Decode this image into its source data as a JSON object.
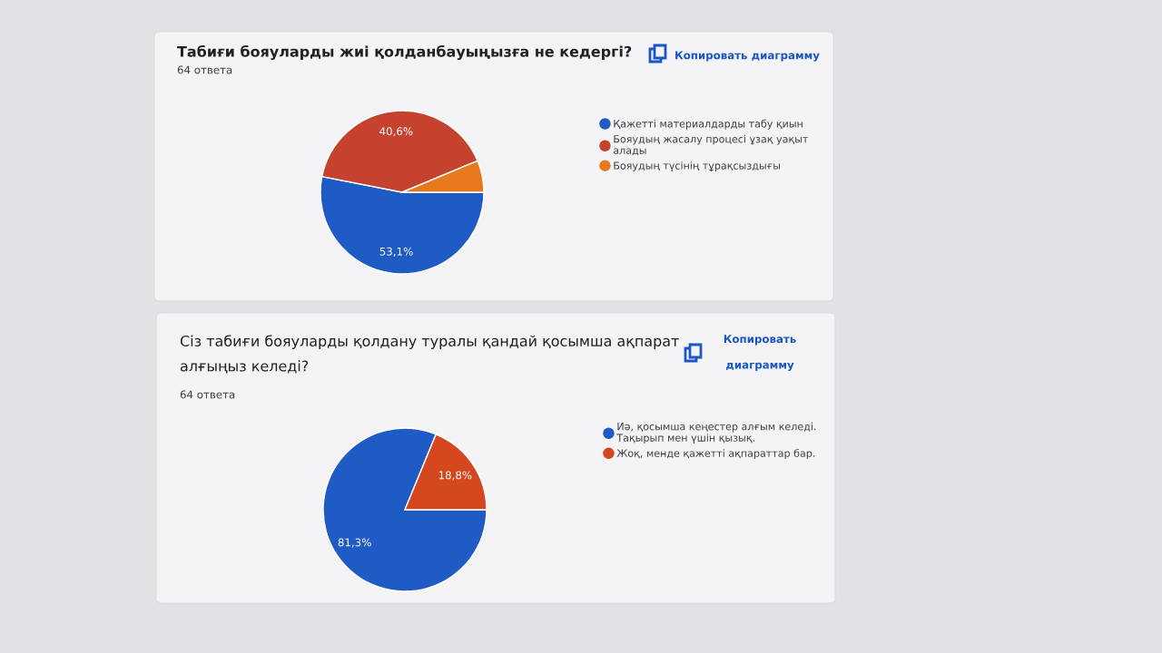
{
  "chart_data": [
    {
      "type": "pie",
      "title": "Табиғи бояуларды жиі қолданбауыңызға не кедергі?",
      "subtitle": "64 ответа",
      "annotations": [
        "Копировать диаграмму"
      ],
      "categories": [
        "Қажетті материалдарды табу қиын",
        "Бояудың жасалу процесі ұзақ уақыт алады",
        "Бояудың түсінің тұрақсыздығы"
      ],
      "values": [
        53.1,
        40.6,
        6.3
      ],
      "colors": [
        "#1f5bc4",
        "#c5432e",
        "#e8781e"
      ],
      "value_labels": [
        "53,1%",
        "40,6%",
        null
      ],
      "legend": "right"
    },
    {
      "type": "pie",
      "title": "Сіз табиғи бояуларды қолдану туралы қандай қосымша ақпарат алғыңыз келеді?",
      "subtitle": "64 ответа",
      "annotations": [
        "Копировать диаграмму"
      ],
      "categories": [
        "Иә, қосымша кеңестер алғым келеді. Тақырып мен үшін қызық.",
        "Жоқ, менде қажетті ақпараттар бар."
      ],
      "values": [
        81.3,
        18.8
      ],
      "colors": [
        "#1f5bc4",
        "#d5471f"
      ],
      "value_labels": [
        "81,3%",
        "18,8%"
      ],
      "legend": "right"
    }
  ]
}
